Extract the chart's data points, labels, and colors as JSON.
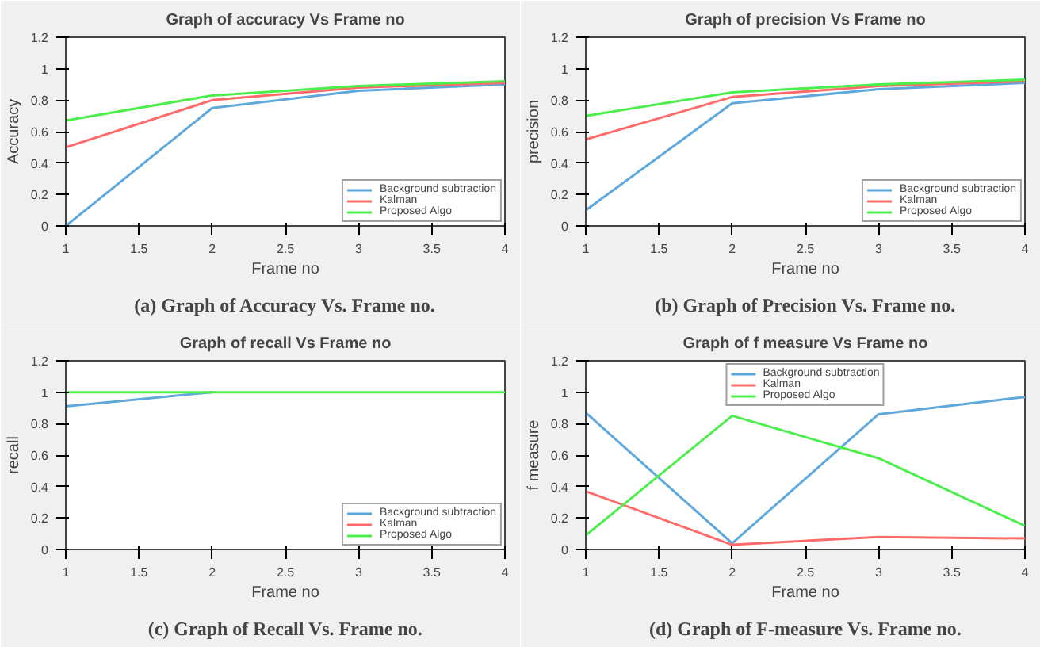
{
  "chart_data": [
    {
      "type": "line",
      "title": "Graph of accuracy Vs Frame no",
      "xlabel": "Frame no",
      "ylabel": "Accuracy",
      "x": [
        1,
        2,
        3,
        4
      ],
      "xlim": [
        1,
        4
      ],
      "xticks": [
        1,
        1.5,
        2,
        2.5,
        3,
        3.5,
        4
      ],
      "ylim": [
        0,
        1.2
      ],
      "yticks": [
        0,
        0.2,
        0.4,
        0.6,
        0.8,
        1,
        1.2
      ],
      "grid": false,
      "legend": "bottom right",
      "annotations": [
        "(a) Graph of Accuracy Vs. Frame no."
      ],
      "series": [
        {
          "name": "Background subtraction",
          "color": "#5fa8dc",
          "values": [
            0,
            0.75,
            0.86,
            0.9
          ]
        },
        {
          "name": "Kalman",
          "color": "#ff6b6b",
          "values": [
            0.5,
            0.8,
            0.88,
            0.91
          ]
        },
        {
          "name": "Proposed Algo",
          "color": "#4cee4c",
          "values": [
            0.67,
            0.83,
            0.89,
            0.92
          ]
        }
      ]
    },
    {
      "type": "line",
      "title": "Graph of precision Vs Frame no",
      "xlabel": "Frame no",
      "ylabel": "precision",
      "x": [
        1,
        2,
        3,
        4
      ],
      "xlim": [
        1,
        4
      ],
      "xticks": [
        1,
        1.5,
        2,
        2.5,
        3,
        3.5,
        4
      ],
      "ylim": [
        0,
        1.2
      ],
      "yticks": [
        0,
        0.2,
        0.4,
        0.6,
        0.8,
        1,
        1.2
      ],
      "grid": false,
      "legend": "bottom right",
      "annotations": [
        "(b) Graph of Precision Vs. Frame no."
      ],
      "series": [
        {
          "name": "Background subtraction",
          "color": "#5fa8dc",
          "values": [
            0.1,
            0.78,
            0.87,
            0.91
          ]
        },
        {
          "name": "Kalman",
          "color": "#ff6b6b",
          "values": [
            0.55,
            0.82,
            0.89,
            0.92
          ]
        },
        {
          "name": "Proposed Algo",
          "color": "#4cee4c",
          "values": [
            0.7,
            0.85,
            0.9,
            0.93
          ]
        }
      ]
    },
    {
      "type": "line",
      "title": "Graph of recall Vs Frame no",
      "xlabel": "Frame no",
      "ylabel": "recall",
      "x": [
        1,
        2,
        3,
        4
      ],
      "xlim": [
        1,
        4
      ],
      "xticks": [
        1,
        1.5,
        2,
        2.5,
        3,
        3.5,
        4
      ],
      "ylim": [
        0,
        1.2
      ],
      "yticks": [
        0,
        0.2,
        0.4,
        0.6,
        0.8,
        1,
        1.2
      ],
      "grid": false,
      "legend": "bottom right",
      "annotations": [
        "(c) Graph of Recall Vs. Frame no."
      ],
      "series": [
        {
          "name": "Background subtraction",
          "color": "#5fa8dc",
          "values": [
            0.91,
            1,
            null,
            null
          ]
        },
        {
          "name": "Kalman",
          "color": "#ff6b6b",
          "values": [
            null,
            null,
            null,
            null
          ]
        },
        {
          "name": "Proposed Algo",
          "color": "#4cee4c",
          "values": [
            1,
            1,
            1,
            1
          ]
        }
      ]
    },
    {
      "type": "line",
      "title": "Graph of f measure Vs Frame no",
      "xlabel": "Frame no",
      "ylabel": "f measure",
      "x": [
        1,
        2,
        3,
        4
      ],
      "xlim": [
        1,
        4
      ],
      "xticks": [
        1,
        1.5,
        2,
        2.5,
        3,
        3.5,
        4
      ],
      "ylim": [
        0,
        1.2
      ],
      "yticks": [
        0,
        0.2,
        0.4,
        0.6,
        0.8,
        1,
        1.2
      ],
      "grid": false,
      "legend": "top",
      "annotations": [
        "(d) Graph of F-measure Vs. Frame no."
      ],
      "series": [
        {
          "name": "Background subtraction",
          "color": "#5fa8dc",
          "values": [
            0.87,
            0.04,
            0.86,
            0.97
          ]
        },
        {
          "name": "Kalman",
          "color": "#ff6b6b",
          "values": [
            0.37,
            0.03,
            0.08,
            0.07
          ]
        },
        {
          "name": "Proposed Algo",
          "color": "#4cee4c",
          "values": [
            0.09,
            0.85,
            0.58,
            0.15
          ]
        }
      ]
    }
  ]
}
